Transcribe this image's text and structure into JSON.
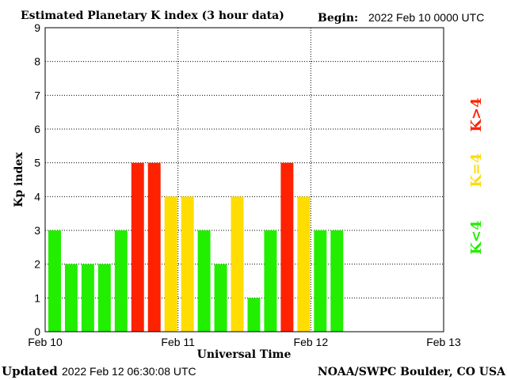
{
  "chart_data": {
    "type": "bar",
    "title": "Estimated Planetary K index (3 hour data)",
    "begin_label": "Begin:",
    "begin_value": "2022 Feb 10 0000 UTC",
    "xlabel": "Universal Time",
    "ylabel": "Kp index",
    "ylim": [
      0,
      9
    ],
    "yticks": [
      "0",
      "1",
      "2",
      "3",
      "4",
      "5",
      "6",
      "7",
      "8",
      "9"
    ],
    "xticks": [
      "Feb 10",
      "Feb 11",
      "Feb 12",
      "Feb 13"
    ],
    "interval_hours": 3,
    "slots": 24,
    "values": [
      3,
      2,
      2,
      2,
      3,
      5,
      5,
      4,
      4,
      3,
      2,
      4,
      1,
      3,
      5,
      4,
      3,
      3
    ],
    "grid": true,
    "legend": [
      {
        "label": "K<4",
        "color": "#22ee00"
      },
      {
        "label": "K=4",
        "color": "#ffdd00"
      },
      {
        "label": "K>4",
        "color": "#ff2200"
      }
    ],
    "legend_placement": "right"
  },
  "footer": {
    "updated_label": "Updated",
    "updated_value": "2022 Feb 12 06:30:08 UTC",
    "credit": "NOAA/SWPC Boulder, CO USA"
  }
}
